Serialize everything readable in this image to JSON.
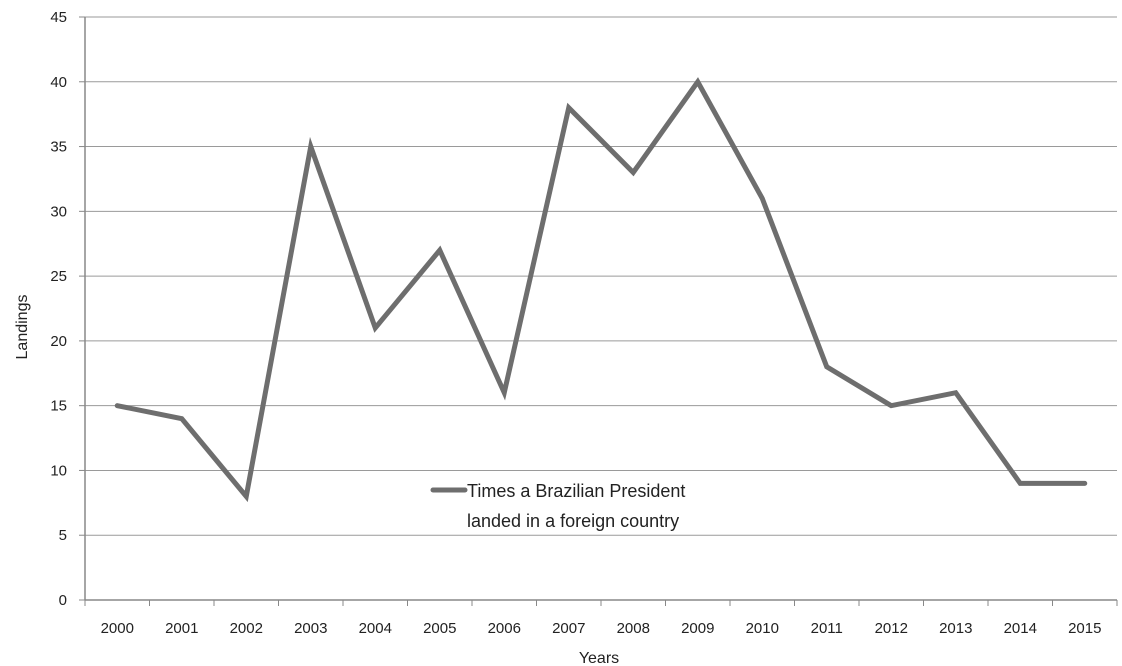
{
  "chart_data": {
    "type": "line",
    "categories": [
      "2000",
      "2001",
      "2002",
      "2003",
      "2004",
      "2005",
      "2006",
      "2007",
      "2008",
      "2009",
      "2010",
      "2011",
      "2012",
      "2013",
      "2014",
      "2015"
    ],
    "series": [
      {
        "name": "Times a Brazilian President landed in a foreign country",
        "values": [
          15,
          14,
          8,
          35,
          21,
          27,
          16,
          38,
          33,
          40,
          31,
          18,
          15,
          16,
          9,
          9
        ],
        "color": "#6e6e6e"
      }
    ],
    "legend_lines": [
      "Times a Brazilian President",
      "landed in a foreign country"
    ],
    "legend_placement": "center-bottom (inside plot)",
    "xlabel": "Years",
    "ylabel": "Landings",
    "ylim": [
      0,
      45
    ],
    "yticks": [
      0,
      5,
      10,
      15,
      20,
      25,
      30,
      35,
      40,
      45
    ],
    "grid": "horizontal",
    "gridline_color": "#9a9a9a",
    "axis_color": "#888888"
  }
}
